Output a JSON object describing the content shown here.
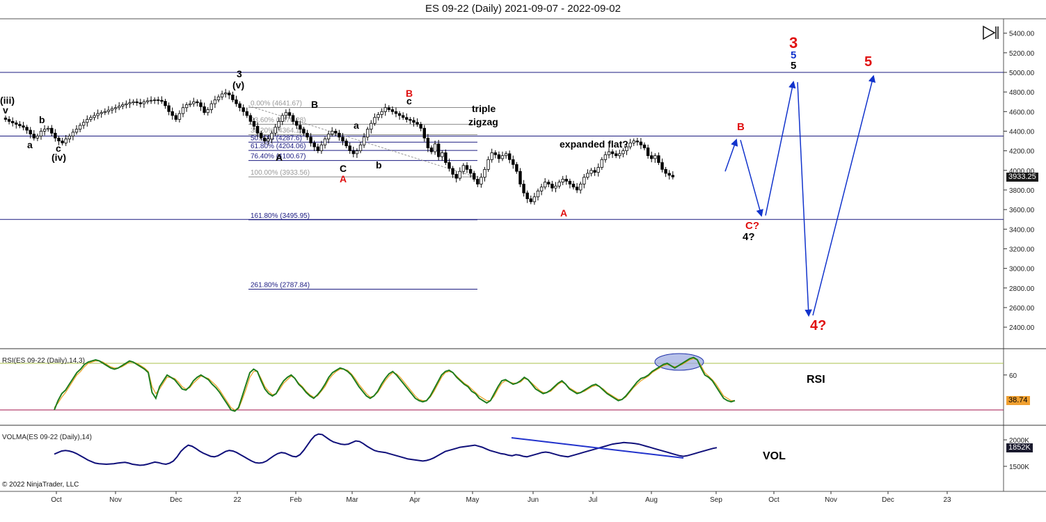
{
  "title": "ES 09-22 (Daily)  2021-09-07 - 2022-09-02",
  "copyright": "© 2022 NinjaTrader, LLC",
  "colors": {
    "up": "#ffffff",
    "down": "#000000",
    "fib": "#8a8a8a",
    "navy": "#1a1a80",
    "red": "#e01010",
    "blue": "#1133cc",
    "rsi": "#1e7d1e",
    "rsiSignal": "#e8a020",
    "rsiUpper": "#a9c24a",
    "rsiLower": "#a0104a",
    "vol": "#10107a"
  },
  "price_tag": "3933.25",
  "rsi_label": "RSI(ES 09-22 (Daily),14,3)",
  "rsi_value": "38.74",
  "vol_label": "VOLMA(ES 09-22 (Daily),14)",
  "vol_value": "1852K",
  "icons": [
    "play-pause-icon"
  ],
  "chart_data": {
    "type": "candlestick",
    "x_ticks": [
      "Oct",
      "Nov",
      "Dec",
      "22",
      "Feb",
      "Mar",
      "Apr",
      "May",
      "Jun",
      "Jul",
      "Aug",
      "Sep",
      "Oct",
      "Nov",
      "Dec",
      "23"
    ],
    "price_axis": {
      "ylim": [
        2240,
        5520
      ],
      "ticks": [
        "5400.00",
        "5200.00",
        "5000.00",
        "4800.00",
        "4600.00",
        "4400.00",
        "4200.00",
        "4000.00",
        "3800.00",
        "3600.00",
        "3400.00",
        "3200.00",
        "3000.00",
        "2800.00",
        "2600.00",
        "2400.00"
      ]
    },
    "rsi_axis": {
      "ticks": [
        "60"
      ],
      "upper": 70,
      "lower": 30
    },
    "vol_axis": {
      "ticks": [
        "2000K",
        "1500K"
      ]
    },
    "closes": [
      4520,
      4500,
      4485,
      4470,
      4455,
      4440,
      4410,
      4370,
      4330,
      4350,
      4400,
      4420,
      4430,
      4380,
      4330,
      4300,
      4280,
      4320,
      4350,
      4390,
      4420,
      4460,
      4490,
      4520,
      4540,
      4560,
      4580,
      4590,
      4600,
      4615,
      4630,
      4640,
      4655,
      4670,
      4680,
      4690,
      4700,
      4690,
      4680,
      4700,
      4710,
      4715,
      4720,
      4715,
      4705,
      4660,
      4600,
      4560,
      4520,
      4580,
      4640,
      4670,
      4680,
      4700,
      4690,
      4650,
      4590,
      4620,
      4680,
      4720,
      4750,
      4780,
      4790,
      4770,
      4720,
      4680,
      4640,
      4600,
      4560,
      4500,
      4450,
      4380,
      4330,
      4300,
      4320,
      4380,
      4440,
      4500,
      4560,
      4590,
      4560,
      4500,
      4460,
      4420,
      4380,
      4340,
      4280,
      4240,
      4200,
      4260,
      4320,
      4370,
      4400,
      4380,
      4340,
      4300,
      4250,
      4200,
      4170,
      4200,
      4260,
      4340,
      4420,
      4480,
      4540,
      4570,
      4600,
      4640,
      4620,
      4600,
      4580,
      4560,
      4540,
      4520,
      4510,
      4490,
      4470,
      4430,
      4330,
      4230,
      4190,
      4270,
      4140,
      4180,
      4080,
      4020,
      3960,
      3920,
      3990,
      4050,
      4010,
      3970,
      3910,
      3860,
      3930,
      4010,
      4110,
      4180,
      4160,
      4120,
      4150,
      4170,
      4110,
      4060,
      3990,
      3860,
      3770,
      3710,
      3680,
      3730,
      3790,
      3830,
      3880,
      3860,
      3820,
      3840,
      3880,
      3910,
      3890,
      3860,
      3830,
      3800,
      3860,
      3930,
      3970,
      4000,
      3980,
      4030,
      4110,
      4160,
      4190,
      4170,
      4150,
      4170,
      4200,
      4240,
      4280,
      4300,
      4290,
      4260,
      4230,
      4150,
      4120,
      4150,
      4080,
      4010,
      3970,
      3950,
      3933
    ],
    "fib_levels": [
      {
        "label": "0.00% (4641.67)",
        "price": 4641.67
      },
      {
        "label": "23.60% (4470.28)",
        "price": 4470.28
      },
      {
        "label": "38.20% (4364.17)",
        "price": 4364.17
      },
      {
        "label": "50.00% (4287.6)",
        "price": 4287.6
      },
      {
        "label": "61.80% (4204.06)",
        "price": 4204.06
      },
      {
        "label": "76.40% (4100.67)",
        "price": 4100.67
      },
      {
        "label": "100.00% (3933.56)",
        "price": 3933.56
      },
      {
        "label": "161.80% (3495.95)",
        "price": 3495.95
      },
      {
        "label": "261.80% (2787.84)",
        "price": 2787.84
      }
    ],
    "horizontal_lines": [
      5000,
      4350,
      3500
    ],
    "projection_path": [
      [
        "Sep 1",
        3990
      ],
      [
        "Sep 18",
        4310
      ],
      [
        "Sep 21",
        3540
      ],
      [
        "Oct 8",
        4900
      ],
      [
        "Oct 26",
        2520
      ],
      [
        "Nov 18",
        4960
      ]
    ],
    "rsi": [
      30,
      38,
      44,
      47,
      52,
      57,
      62,
      65,
      69,
      71,
      72,
      73,
      72,
      70,
      68,
      66,
      65,
      66,
      68,
      70,
      72,
      71,
      69,
      67,
      65,
      62,
      45,
      40,
      50,
      55,
      60,
      58,
      56,
      52,
      48,
      47,
      50,
      55,
      58,
      60,
      58,
      56,
      52,
      49,
      45,
      40,
      35,
      30,
      29,
      32,
      42,
      52,
      62,
      65,
      63,
      55,
      48,
      44,
      42,
      44,
      50,
      55,
      58,
      60,
      57,
      52,
      49,
      45,
      42,
      40,
      43,
      47,
      52,
      58,
      62,
      64,
      66,
      65,
      63,
      60,
      55,
      50,
      46,
      42,
      40,
      42,
      46,
      52,
      57,
      61,
      63,
      60,
      56,
      52,
      48,
      44,
      40,
      38,
      37,
      38,
      42,
      48,
      54,
      60,
      63,
      64,
      62,
      58,
      55,
      52,
      50,
      46,
      44,
      40,
      38,
      36,
      38,
      44,
      50,
      55,
      56,
      54,
      52,
      53,
      55,
      58,
      56,
      52,
      48,
      46,
      44,
      45,
      47,
      50,
      53,
      55,
      52,
      48,
      46,
      44,
      45,
      47,
      49,
      51,
      52,
      50,
      47,
      44,
      42,
      40,
      38,
      39,
      42,
      46,
      50,
      54,
      57,
      58,
      60,
      63,
      65,
      67,
      69,
      70,
      68,
      66,
      68,
      70,
      72,
      74,
      75,
      73,
      66,
      60,
      58,
      55,
      50,
      45,
      40,
      38,
      37,
      38
    ],
    "rsi_signal": [
      32,
      36,
      41,
      45,
      50,
      55,
      60,
      63,
      67,
      70,
      71,
      72,
      72,
      71,
      69,
      67,
      66,
      66,
      67,
      69,
      71,
      71,
      70,
      68,
      66,
      63,
      50,
      44,
      48,
      53,
      58,
      58,
      57,
      54,
      50,
      48,
      49,
      53,
      56,
      59,
      58,
      57,
      54,
      51,
      47,
      42,
      37,
      32,
      30,
      31,
      39,
      48,
      58,
      63,
      63,
      57,
      50,
      46,
      43,
      44,
      48,
      53,
      56,
      59,
      57,
      53,
      50,
      46,
      43,
      41,
      42,
      46,
      50,
      56,
      60,
      63,
      65,
      65,
      64,
      61,
      57,
      52,
      48,
      44,
      41,
      42,
      45,
      50,
      55,
      59,
      62,
      61,
      58,
      54,
      50,
      46,
      42,
      39,
      38,
      38,
      41,
      46,
      52,
      58,
      62,
      63,
      62,
      59,
      56,
      53,
      51,
      48,
      45,
      42,
      40,
      38,
      38,
      42,
      48,
      53,
      55,
      54,
      53,
      53,
      54,
      57,
      56,
      53,
      50,
      47,
      45,
      45,
      46,
      49,
      52,
      54,
      52,
      49,
      47,
      45,
      45,
      46,
      48,
      50,
      51,
      50,
      48,
      45,
      43,
      41,
      39,
      39,
      41,
      45,
      49,
      52,
      55,
      57,
      59,
      62,
      64,
      66,
      68,
      69,
      68,
      67,
      68,
      69,
      71,
      73,
      74,
      73,
      68,
      62,
      59,
      56,
      52,
      47,
      42,
      40,
      38,
      38
    ],
    "vol": [
      1730,
      1760,
      1790,
      1800,
      1790,
      1770,
      1740,
      1700,
      1660,
      1620,
      1590,
      1560,
      1550,
      1545,
      1540,
      1545,
      1550,
      1560,
      1570,
      1575,
      1560,
      1540,
      1530,
      1520,
      1525,
      1540,
      1560,
      1580,
      1570,
      1550,
      1540,
      1560,
      1600,
      1680,
      1780,
      1850,
      1900,
      1880,
      1840,
      1790,
      1750,
      1720,
      1690,
      1680,
      1700,
      1740,
      1780,
      1800,
      1790,
      1760,
      1720,
      1680,
      1640,
      1600,
      1570,
      1560,
      1570,
      1600,
      1650,
      1700,
      1740,
      1760,
      1750,
      1720,
      1690,
      1680,
      1720,
      1800,
      1900,
      2000,
      2080,
      2110,
      2100,
      2050,
      2000,
      1960,
      1940,
      1920,
      1910,
      1920,
      1950,
      1980,
      1970,
      1930,
      1880,
      1840,
      1800,
      1780,
      1770,
      1760,
      1740,
      1720,
      1700,
      1680,
      1660,
      1640,
      1630,
      1620,
      1610,
      1600,
      1610,
      1630,
      1660,
      1700,
      1740,
      1780,
      1800,
      1820,
      1840,
      1860,
      1870,
      1880,
      1890,
      1900,
      1880,
      1860,
      1830,
      1800,
      1780,
      1760,
      1740,
      1730,
      1710,
      1700,
      1720,
      1710,
      1690,
      1680,
      1700,
      1720,
      1740,
      1760,
      1770,
      1760,
      1740,
      1720,
      1700,
      1690,
      1680,
      1700,
      1720,
      1740,
      1760,
      1780,
      1800,
      1820,
      1840,
      1860,
      1880,
      1900,
      1920,
      1930,
      1940,
      1950,
      1945,
      1940,
      1930,
      1920,
      1900,
      1880,
      1860,
      1840,
      1820,
      1800,
      1780,
      1760,
      1740,
      1720,
      1700,
      1690,
      1700,
      1720,
      1740,
      1760,
      1780,
      1800,
      1820,
      1840,
      1852
    ]
  },
  "annotations": [
    {
      "text": "(iii)",
      "color": "black",
      "size": 14
    },
    {
      "text": "v",
      "color": "black",
      "size": 14
    },
    {
      "text": "a",
      "color": "black",
      "size": 14
    },
    {
      "text": "b",
      "color": "black",
      "size": 14
    },
    {
      "text": "c",
      "color": "black",
      "size": 14
    },
    {
      "text": "(iv)",
      "color": "black",
      "size": 14
    },
    {
      "text": "3",
      "color": "black",
      "size": 14
    },
    {
      "text": "(v)",
      "color": "black",
      "size": 14
    },
    {
      "text": "B",
      "color": "black",
      "size": 14
    },
    {
      "text": "A",
      "color": "black",
      "size": 14
    },
    {
      "text": "C",
      "color": "black",
      "size": 14
    },
    {
      "text": "A",
      "color": "red",
      "size": 14
    },
    {
      "text": "a",
      "color": "black",
      "size": 14
    },
    {
      "text": "b",
      "color": "black",
      "size": 14
    },
    {
      "text": "B",
      "color": "red",
      "size": 14
    },
    {
      "text": "c",
      "color": "black",
      "size": 14
    },
    {
      "text": "triple",
      "color": "black",
      "size": 14
    },
    {
      "text": "zigzag",
      "color": "black",
      "size": 14
    },
    {
      "text": "expanded flat?",
      "color": "black",
      "size": 14
    },
    {
      "text": "A",
      "color": "red",
      "size": 14
    },
    {
      "text": "B",
      "color": "red",
      "size": 15
    },
    {
      "text": "C?",
      "color": "red",
      "size": 15
    },
    {
      "text": "4?",
      "color": "black",
      "size": 15
    },
    {
      "text": "3",
      "color": "red",
      "size": 22
    },
    {
      "text": "5",
      "color": "blue",
      "size": 15
    },
    {
      "text": "5",
      "color": "black",
      "size": 15
    },
    {
      "text": "5",
      "color": "red",
      "size": 20
    },
    {
      "text": "4?",
      "color": "red",
      "size": 20
    },
    {
      "text": "RSI",
      "color": "black",
      "size": 16
    },
    {
      "text": "VOL",
      "color": "black",
      "size": 16
    }
  ]
}
